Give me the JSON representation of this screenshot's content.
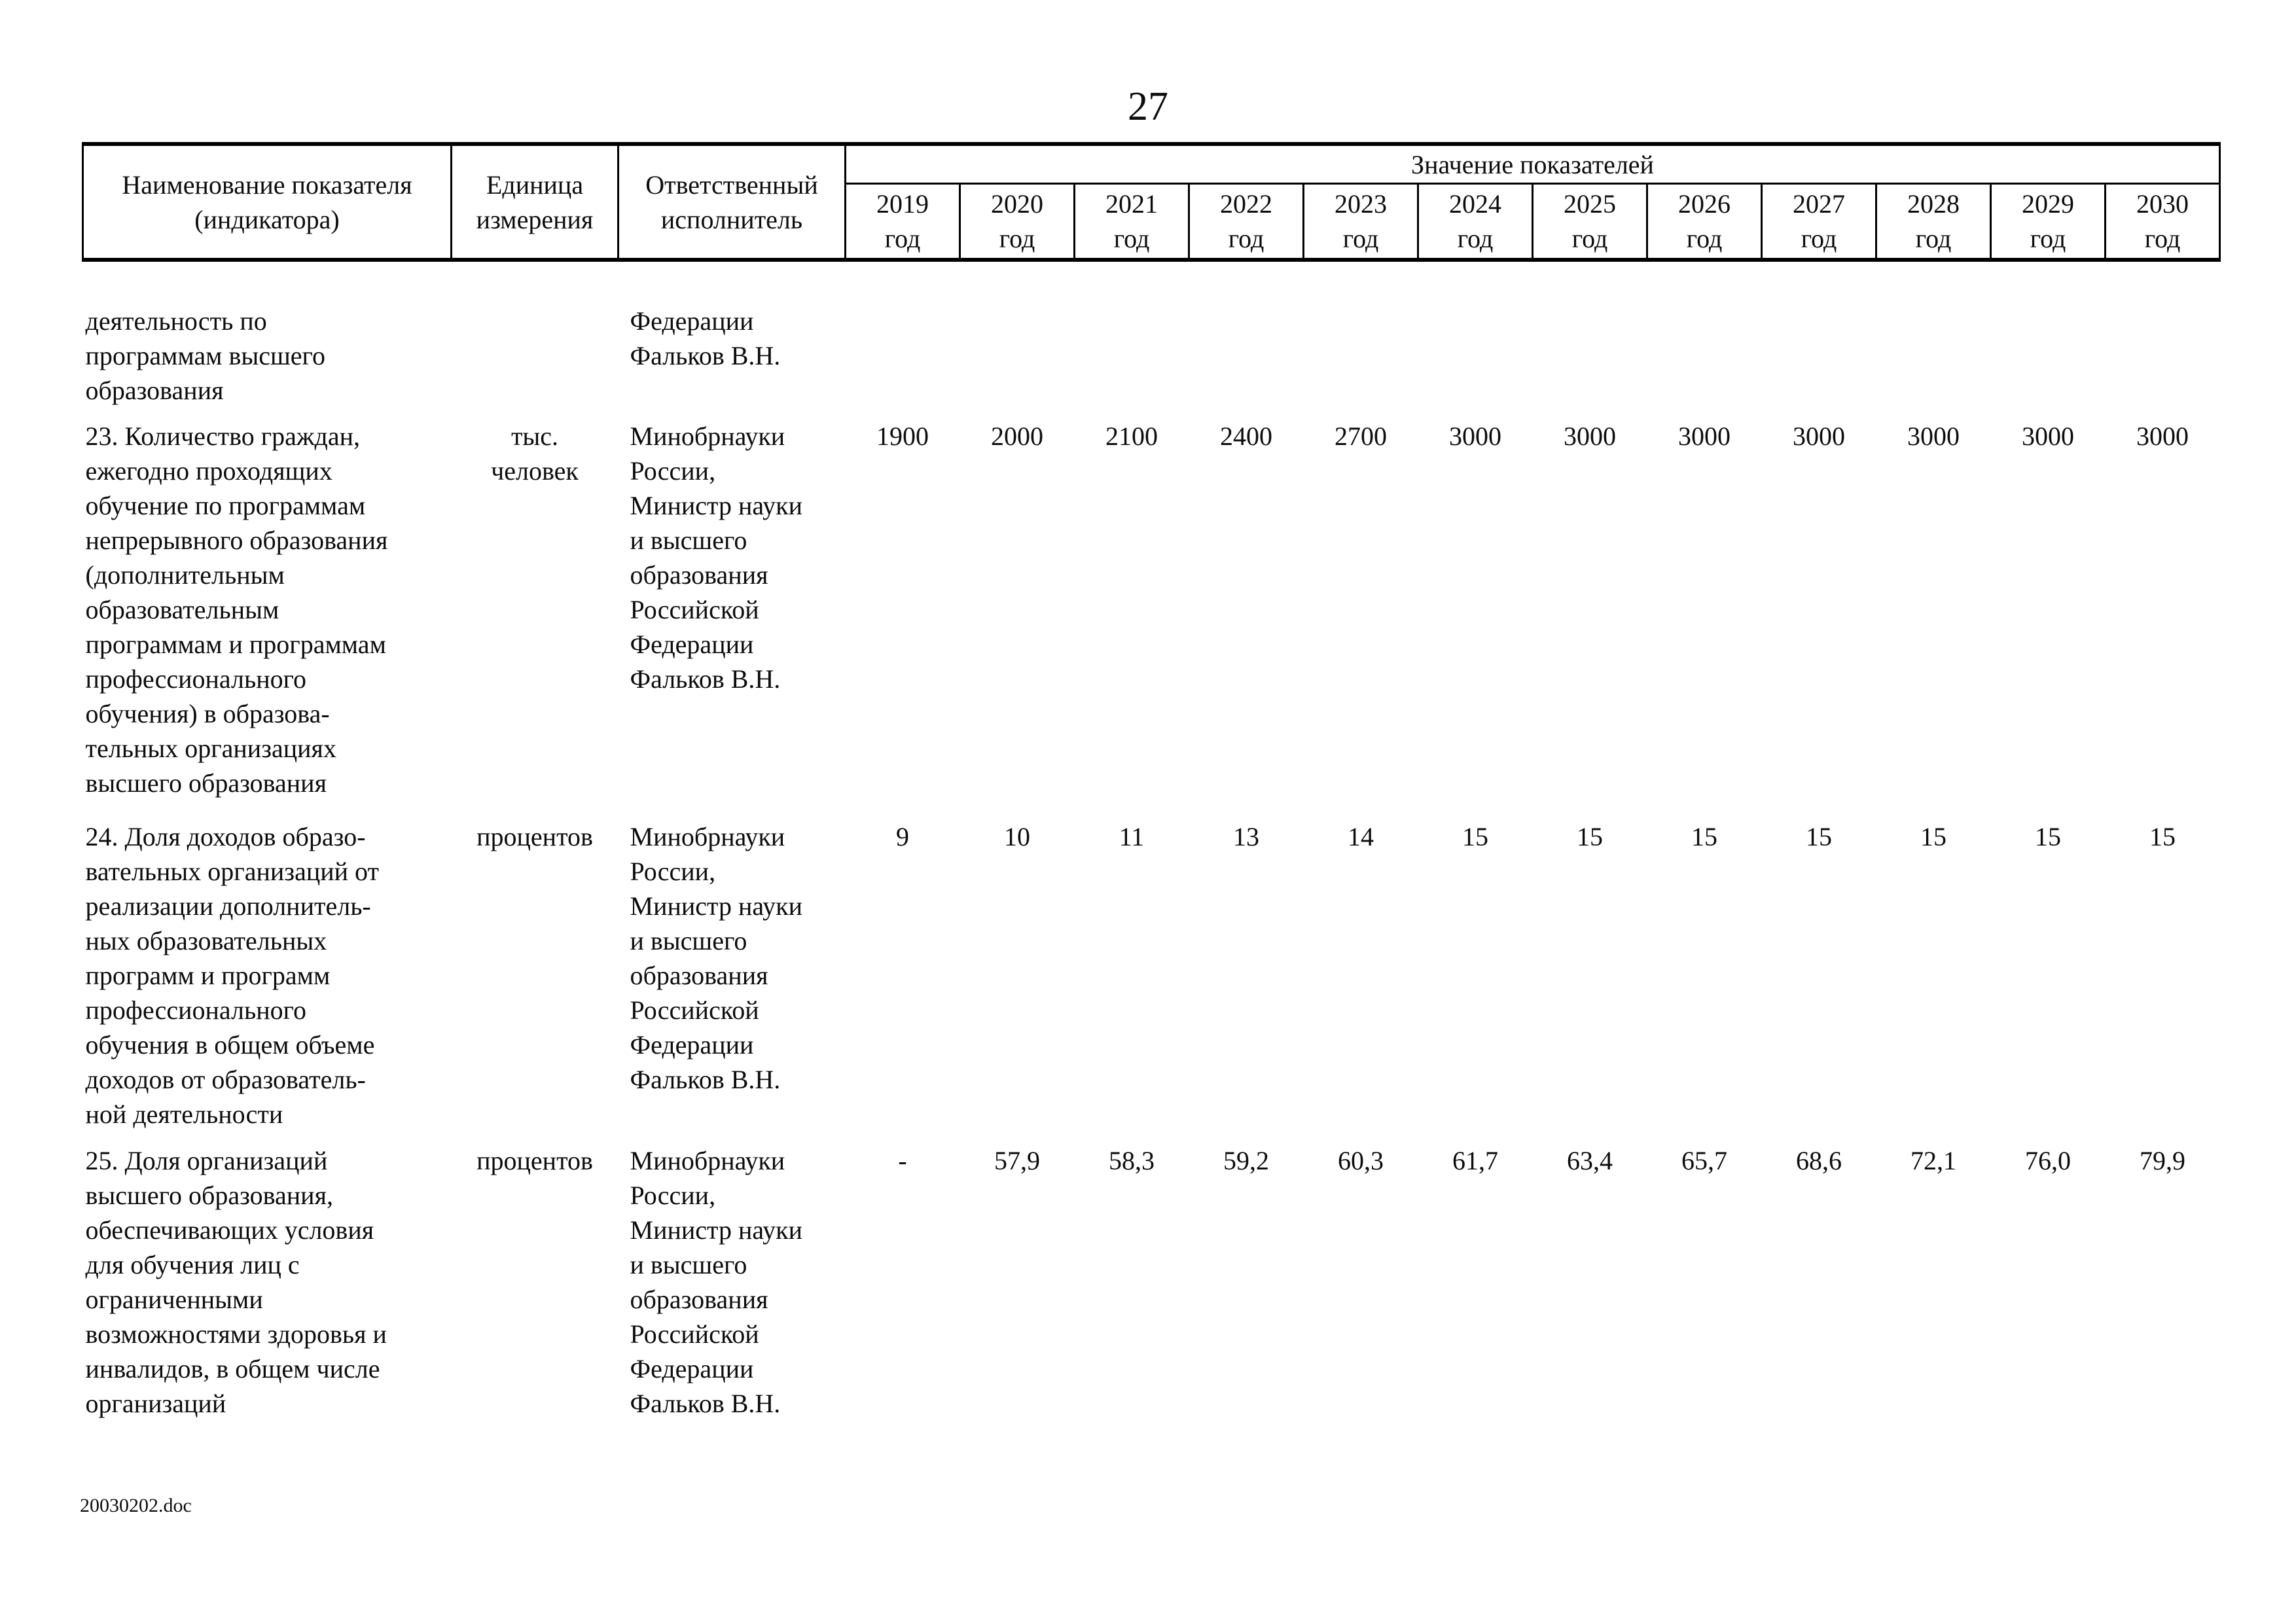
{
  "page": {
    "number": "27",
    "footer_filename": "20030202.doc"
  },
  "table": {
    "header": {
      "name": [
        "Наименование показателя",
        "(индикатора)"
      ],
      "unit": [
        "Единица",
        "измерения"
      ],
      "executor": [
        "Ответственный",
        "исполнитель"
      ],
      "values_group": "Значение показателей",
      "year_suffix": "год",
      "years": [
        "2019",
        "2020",
        "2021",
        "2022",
        "2023",
        "2024",
        "2025",
        "2026",
        "2027",
        "2028",
        "2029",
        "2030"
      ]
    },
    "rows": [
      {
        "name_lines": [
          "деятельность по",
          "программам высшего",
          "образования"
        ],
        "unit": "",
        "executor_lines": [
          "Федерации",
          "Фальков В.Н."
        ],
        "values": [
          "",
          "",
          "",
          "",
          "",
          "",
          "",
          "",
          "",
          "",
          "",
          ""
        ]
      },
      {
        "name_lines": [
          "23. Количество граждан,",
          "ежегодно проходящих",
          "обучение по программам",
          "непрерывного образования",
          "(дополнительным",
          "образовательным",
          "программам и программам",
          "профессионального",
          "обучения) в образова-",
          "тельных организациях",
          "высшего образования"
        ],
        "unit": [
          "тыс.",
          "человек"
        ],
        "executor_lines": [
          "Минобрнауки",
          "России,",
          "Министр науки",
          "и высшего",
          "образования",
          "Российской",
          "Федерации",
          "Фальков В.Н."
        ],
        "values": [
          "1900",
          "2000",
          "2100",
          "2400",
          "2700",
          "3000",
          "3000",
          "3000",
          "3000",
          "3000",
          "3000",
          "3000"
        ]
      },
      {
        "name_lines": [
          "24. Доля доходов образо-",
          "вательных организаций от",
          "реализации дополнитель-",
          "ных образовательных",
          "программ и программ",
          "профессионального",
          "обучения в общем объеме",
          "доходов от образователь-",
          "ной деятельности"
        ],
        "unit": "процентов",
        "executor_lines": [
          "Минобрнауки",
          "России,",
          "Министр науки",
          "и высшего",
          "образования",
          "Российской",
          "Федерации",
          "Фальков В.Н."
        ],
        "values": [
          "9",
          "10",
          "11",
          "13",
          "14",
          "15",
          "15",
          "15",
          "15",
          "15",
          "15",
          "15"
        ]
      },
      {
        "name_lines": [
          "25. Доля организаций",
          "высшего образования,",
          "обеспечивающих условия",
          "для обучения лиц с",
          "ограниченными",
          "возможностями здоровья и",
          "инвалидов, в общем числе",
          "организаций"
        ],
        "unit": "процентов",
        "executor_lines": [
          "Минобрнауки",
          "России,",
          "Министр науки",
          "и высшего",
          "образования",
          "Российской",
          "Федерации",
          "Фальков В.Н."
        ],
        "values": [
          "-",
          "57,9",
          "58,3",
          "59,2",
          "60,3",
          "61,7",
          "63,4",
          "65,7",
          "68,6",
          "72,1",
          "76,0",
          "79,9"
        ]
      }
    ]
  }
}
